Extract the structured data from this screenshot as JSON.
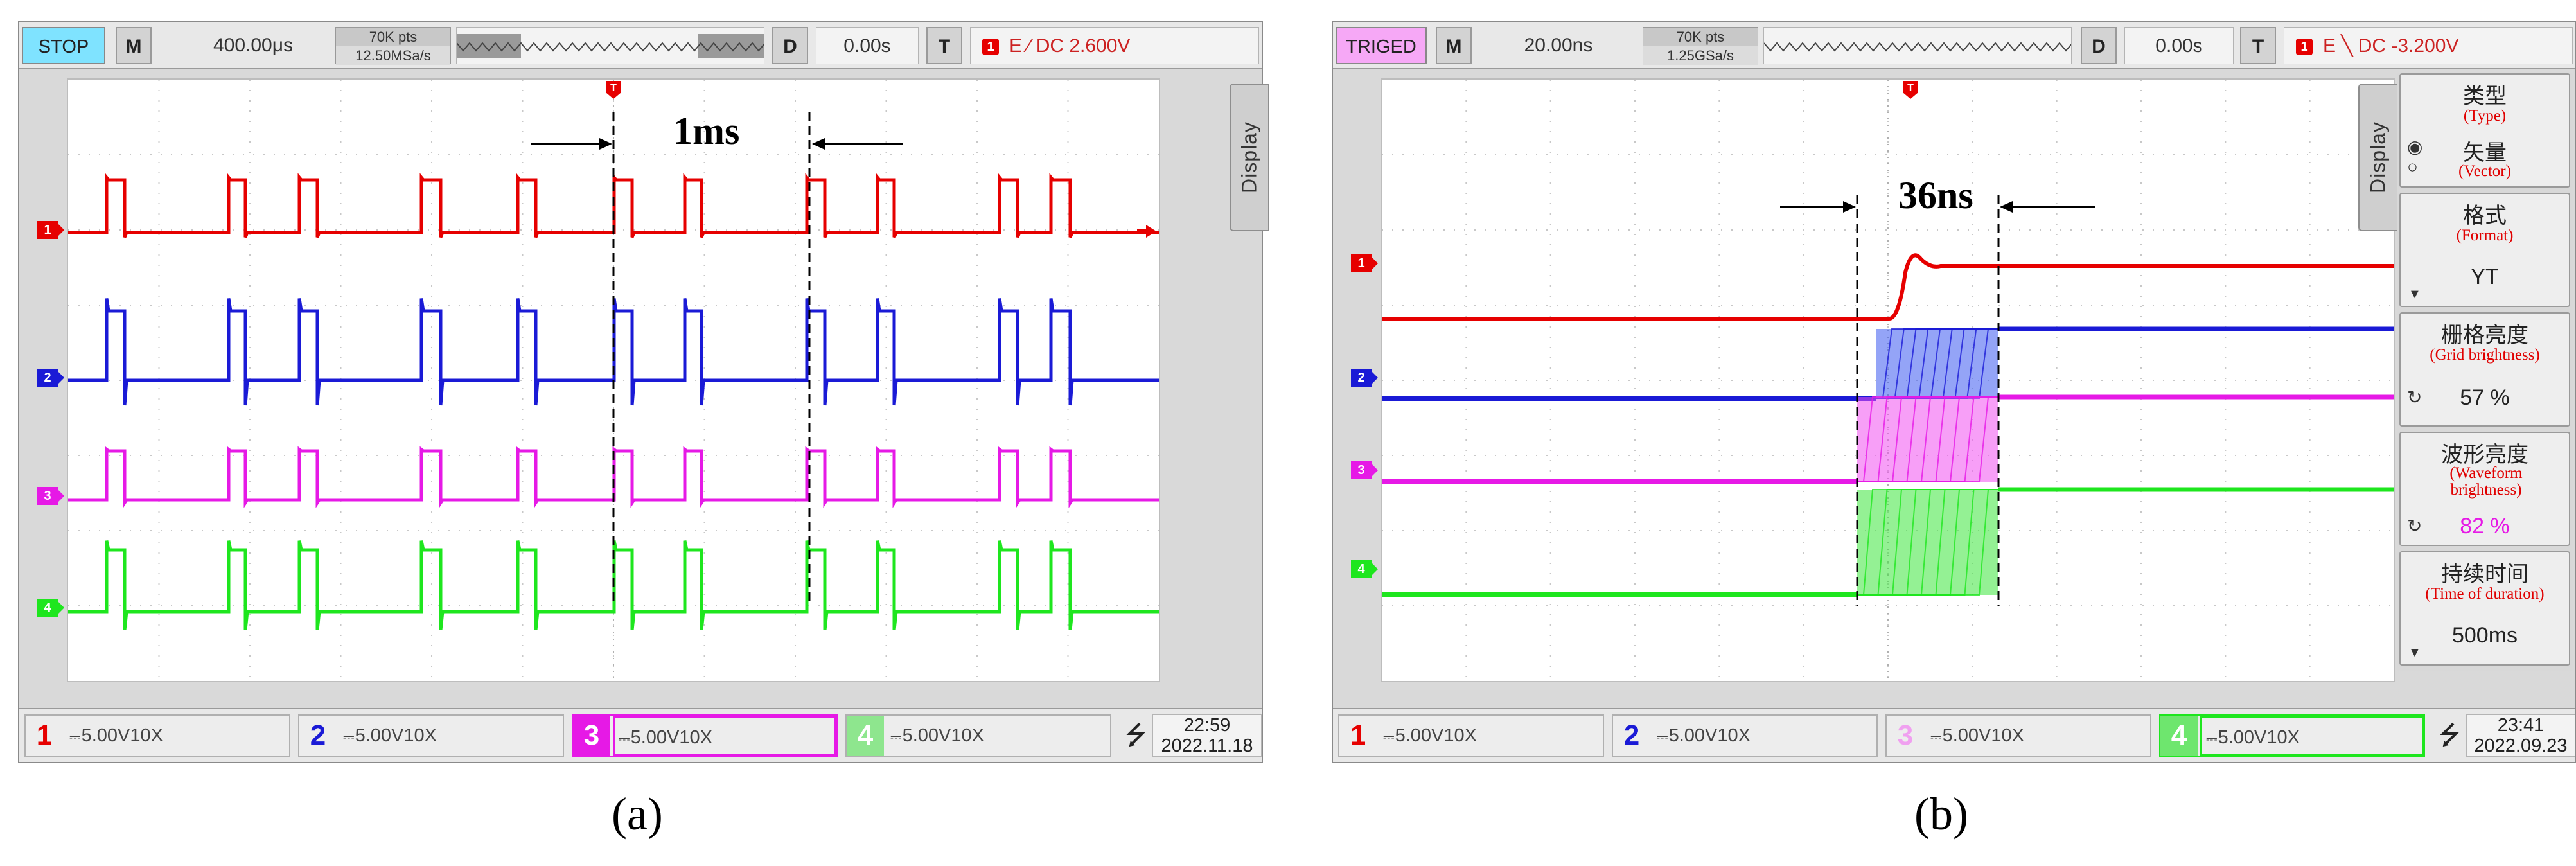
{
  "panels": [
    {
      "id": "a",
      "caption": "(a)",
      "header": {
        "run_state": "STOP",
        "run_state_color": "#7fe3ff",
        "menu_key": "M",
        "timebase": "400.00μs",
        "mem_points": "70K pts",
        "sample_rate": "12.50MSa/s",
        "delay_key": "D",
        "delay": "0.00s",
        "trigger_key": "T",
        "trigger_channel": "1",
        "trigger_desc": "E ∕ DC 2.600V"
      },
      "display_tab": "Display",
      "annotation": "1ms",
      "channels": [
        {
          "label": "1",
          "scale": "5.00V",
          "probe": "10X",
          "color": "#e60000"
        },
        {
          "label": "2",
          "scale": "5.00V",
          "probe": "10X",
          "color": "#1a1ad6"
        },
        {
          "label": "3",
          "scale": "5.00V",
          "probe": "10X",
          "color": "#e619e6"
        },
        {
          "label": "4",
          "scale": "5.00V",
          "probe": "10X",
          "color": "#1ee61e"
        }
      ],
      "clock": {
        "time": "22:59",
        "date": "2022.11.18"
      }
    },
    {
      "id": "b",
      "caption": "(b)",
      "header": {
        "run_state": "TRIGED",
        "run_state_color": "#f6a8f6",
        "menu_key": "M",
        "timebase": "20.00ns",
        "mem_points": "70K pts",
        "sample_rate": "1.25GSa/s",
        "delay_key": "D",
        "delay": "0.00s",
        "trigger_key": "T",
        "trigger_channel": "1",
        "trigger_desc": "E ╲ DC -3.200V"
      },
      "display_tab": "Display",
      "annotation": "36ns",
      "menu": [
        {
          "title": "类型",
          "subtitle": "(Type)",
          "option_1": "矢量",
          "option_1_sub": "(Vector)"
        },
        {
          "title": "格式",
          "subtitle": "(Format)",
          "value": "YT"
        },
        {
          "title": "栅格亮度",
          "subtitle": "(Grid brightness)",
          "value": "57 %"
        },
        {
          "title": "波形亮度",
          "subtitle": "(Waveform brightness)",
          "value": "82 %"
        },
        {
          "title": "持续时间",
          "subtitle": "(Time of duration)",
          "value": "500ms"
        }
      ],
      "channels": [
        {
          "label": "1",
          "scale": "5.00V",
          "probe": "10X",
          "color": "#e60000"
        },
        {
          "label": "2",
          "scale": "5.00V",
          "probe": "10X",
          "color": "#1a1ad6"
        },
        {
          "label": "3",
          "scale": "5.00V",
          "probe": "10X",
          "color": "#e619e6"
        },
        {
          "label": "4",
          "scale": "5.00V",
          "probe": "10X",
          "color": "#1ee61e"
        }
      ],
      "clock": {
        "time": "23:41",
        "date": "2022.09.23"
      }
    }
  ]
}
